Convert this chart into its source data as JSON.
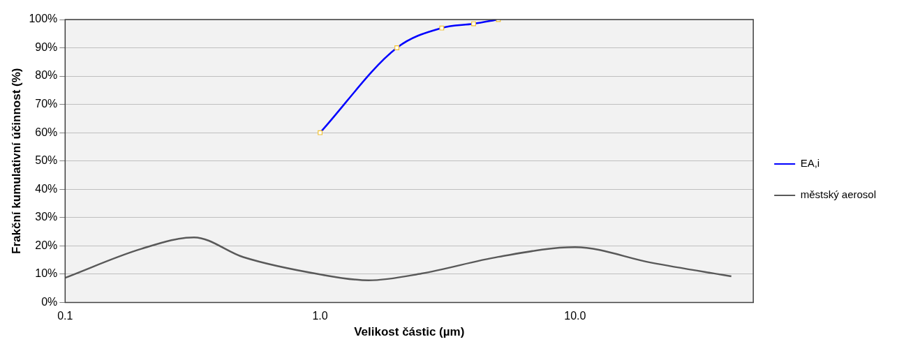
{
  "chart_data": {
    "type": "line",
    "xlabel": "Velikost částic (µm)",
    "ylabel": "Frakční kumulativní účinnost (%)",
    "log": "x",
    "xlim": [
      0.1,
      50
    ],
    "xticks": [
      {
        "value": 0.1,
        "label": "0.1"
      },
      {
        "value": 1,
        "label": "1.0"
      },
      {
        "value": 10,
        "label": "10.0"
      }
    ],
    "ylim": [
      0,
      100
    ],
    "yticks": [
      {
        "value": 0,
        "label": "0%"
      },
      {
        "value": 10,
        "label": "10%"
      },
      {
        "value": 20,
        "label": "20%"
      },
      {
        "value": 30,
        "label": "30%"
      },
      {
        "value": 40,
        "label": "40%"
      },
      {
        "value": 50,
        "label": "50%"
      },
      {
        "value": 60,
        "label": "60%"
      },
      {
        "value": 70,
        "label": "70%"
      },
      {
        "value": 80,
        "label": "80%"
      },
      {
        "value": 90,
        "label": "90%"
      },
      {
        "value": 100,
        "label": "100%"
      }
    ],
    "grid": "y",
    "legend": "right",
    "series": [
      {
        "name": "EA,i",
        "color": "#0000ff",
        "marker": "square",
        "x": [
          1,
          2,
          3,
          4,
          5
        ],
        "values": [
          60,
          90,
          97,
          98.5,
          100
        ]
      },
      {
        "name": "městský aerosol",
        "color": "#595959",
        "marker": "none",
        "x": [
          0.1,
          0.2,
          0.32,
          0.5,
          1,
          1.55,
          2.5,
          5,
          10,
          20,
          41
        ],
        "values": [
          8.7,
          19,
          23,
          16,
          9.9,
          7.8,
          10.2,
          16.1,
          19.5,
          14,
          9.2
        ]
      }
    ]
  }
}
